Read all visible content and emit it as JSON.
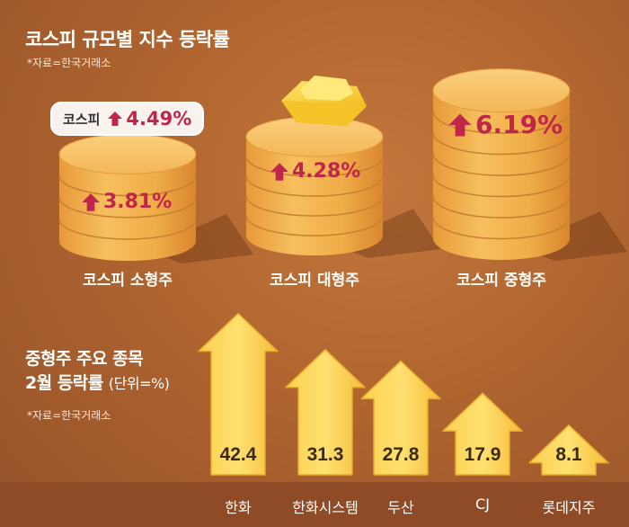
{
  "header": {
    "title": "코스피 규모별 지수 등락률",
    "source": "*자료=한국거래소"
  },
  "kospi_total": {
    "label": "코스피",
    "value": "4.49%"
  },
  "chart_data": [
    {
      "type": "bar",
      "title": "코스피 규모별 지수 등락률",
      "categories": [
        "코스피 소형주",
        "코스피 대형주",
        "코스피 중형주"
      ],
      "values": [
        3.81,
        4.28,
        6.19
      ],
      "value_labels": [
        "3.81%",
        "4.28%",
        "6.19%"
      ],
      "annotation": {
        "label": "코스피",
        "value": "4.49%"
      }
    },
    {
      "type": "bar",
      "title": "중형주 주요 종목 2월 등락률",
      "unit_label": "(단위=%)",
      "categories": [
        "한화",
        "한화시스템",
        "두산",
        "CJ",
        "롯데지주"
      ],
      "values": [
        42.4,
        31.3,
        27.8,
        17.9,
        8.1
      ],
      "value_labels": [
        "42.4",
        "31.3",
        "27.8",
        "17.9",
        "8.1"
      ]
    }
  ],
  "section2": {
    "title_line1": "중형주 주요 종목",
    "title_line2": "2월 등락률",
    "unit": "(단위=%)",
    "source": "*자료=한국거래소"
  },
  "colors": {
    "accent_red": "#c0264a",
    "coin_gold": "#f4b04a",
    "arrow_yellow": "#fdd250",
    "background": "#b0652f"
  }
}
